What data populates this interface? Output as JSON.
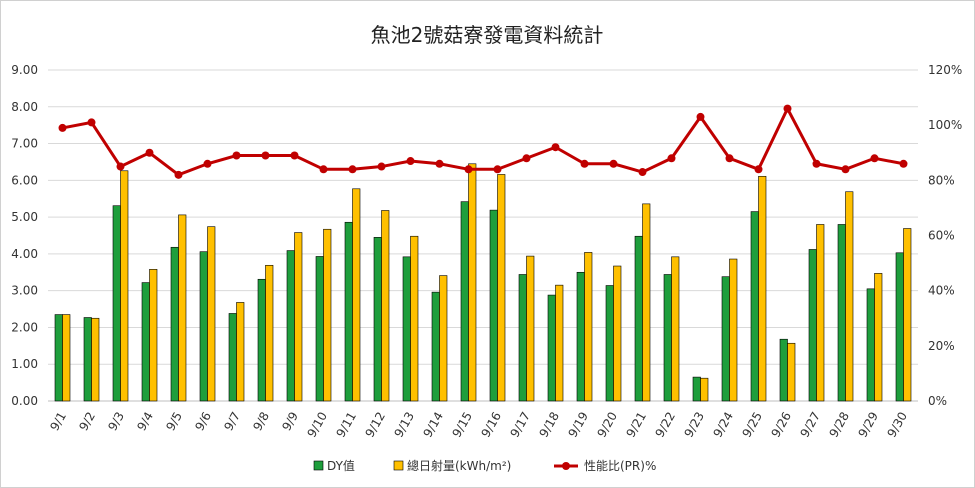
{
  "chart_data": {
    "type": "bar",
    "title": "魚池2號菇寮發電資料統計",
    "categories": [
      "9/1",
      "9/2",
      "9/3",
      "9/4",
      "9/5",
      "9/6",
      "9/7",
      "9/8",
      "9/9",
      "9/10",
      "9/11",
      "9/12",
      "9/13",
      "9/14",
      "9/15",
      "9/16",
      "9/17",
      "9/18",
      "9/19",
      "9/20",
      "9/21",
      "9/22",
      "9/23",
      "9/24",
      "9/25",
      "9/26",
      "9/27",
      "9/28",
      "9/29",
      "9/30"
    ],
    "series": [
      {
        "name": "DY值",
        "type": "bar",
        "axis": "left",
        "color": "#1e9e3c",
        "values": [
          2.35,
          2.27,
          5.31,
          3.22,
          4.18,
          4.06,
          2.38,
          3.31,
          4.09,
          3.93,
          4.86,
          4.45,
          3.92,
          2.96,
          5.42,
          5.19,
          3.44,
          2.88,
          3.5,
          3.14,
          4.48,
          3.44,
          0.65,
          3.38,
          5.15,
          1.68,
          4.12,
          4.8,
          3.05,
          4.03
        ]
      },
      {
        "name": "總日射量(kWh/m²)",
        "type": "bar",
        "axis": "left",
        "color": "#ffc000",
        "values": [
          2.35,
          2.25,
          6.26,
          3.58,
          5.06,
          4.74,
          2.68,
          3.69,
          4.58,
          4.67,
          5.77,
          5.18,
          4.48,
          3.41,
          6.45,
          6.16,
          3.94,
          3.15,
          4.04,
          3.67,
          5.36,
          3.92,
          0.62,
          3.86,
          6.11,
          1.57,
          4.8,
          5.69,
          3.47,
          4.69
        ]
      },
      {
        "name": "性能比(PR)%",
        "type": "line",
        "axis": "right",
        "color": "#c00000",
        "values": [
          99,
          101,
          85,
          90,
          82,
          86,
          89,
          89,
          89,
          84,
          84,
          85,
          87,
          86,
          84,
          84,
          88,
          92,
          86,
          86,
          83,
          88,
          103,
          88,
          84,
          106,
          86,
          84,
          88,
          86
        ]
      }
    ],
    "y_left": {
      "ylim": [
        0,
        9
      ],
      "ticks": [
        "0.00",
        "1.00",
        "2.00",
        "3.00",
        "4.00",
        "5.00",
        "6.00",
        "7.00",
        "8.00",
        "9.00"
      ]
    },
    "y_right": {
      "ylim": [
        0,
        120
      ],
      "ticks": [
        "0%",
        "20%",
        "40%",
        "60%",
        "80%",
        "100%",
        "120%"
      ]
    },
    "grid": true,
    "legend_position": "bottom"
  }
}
